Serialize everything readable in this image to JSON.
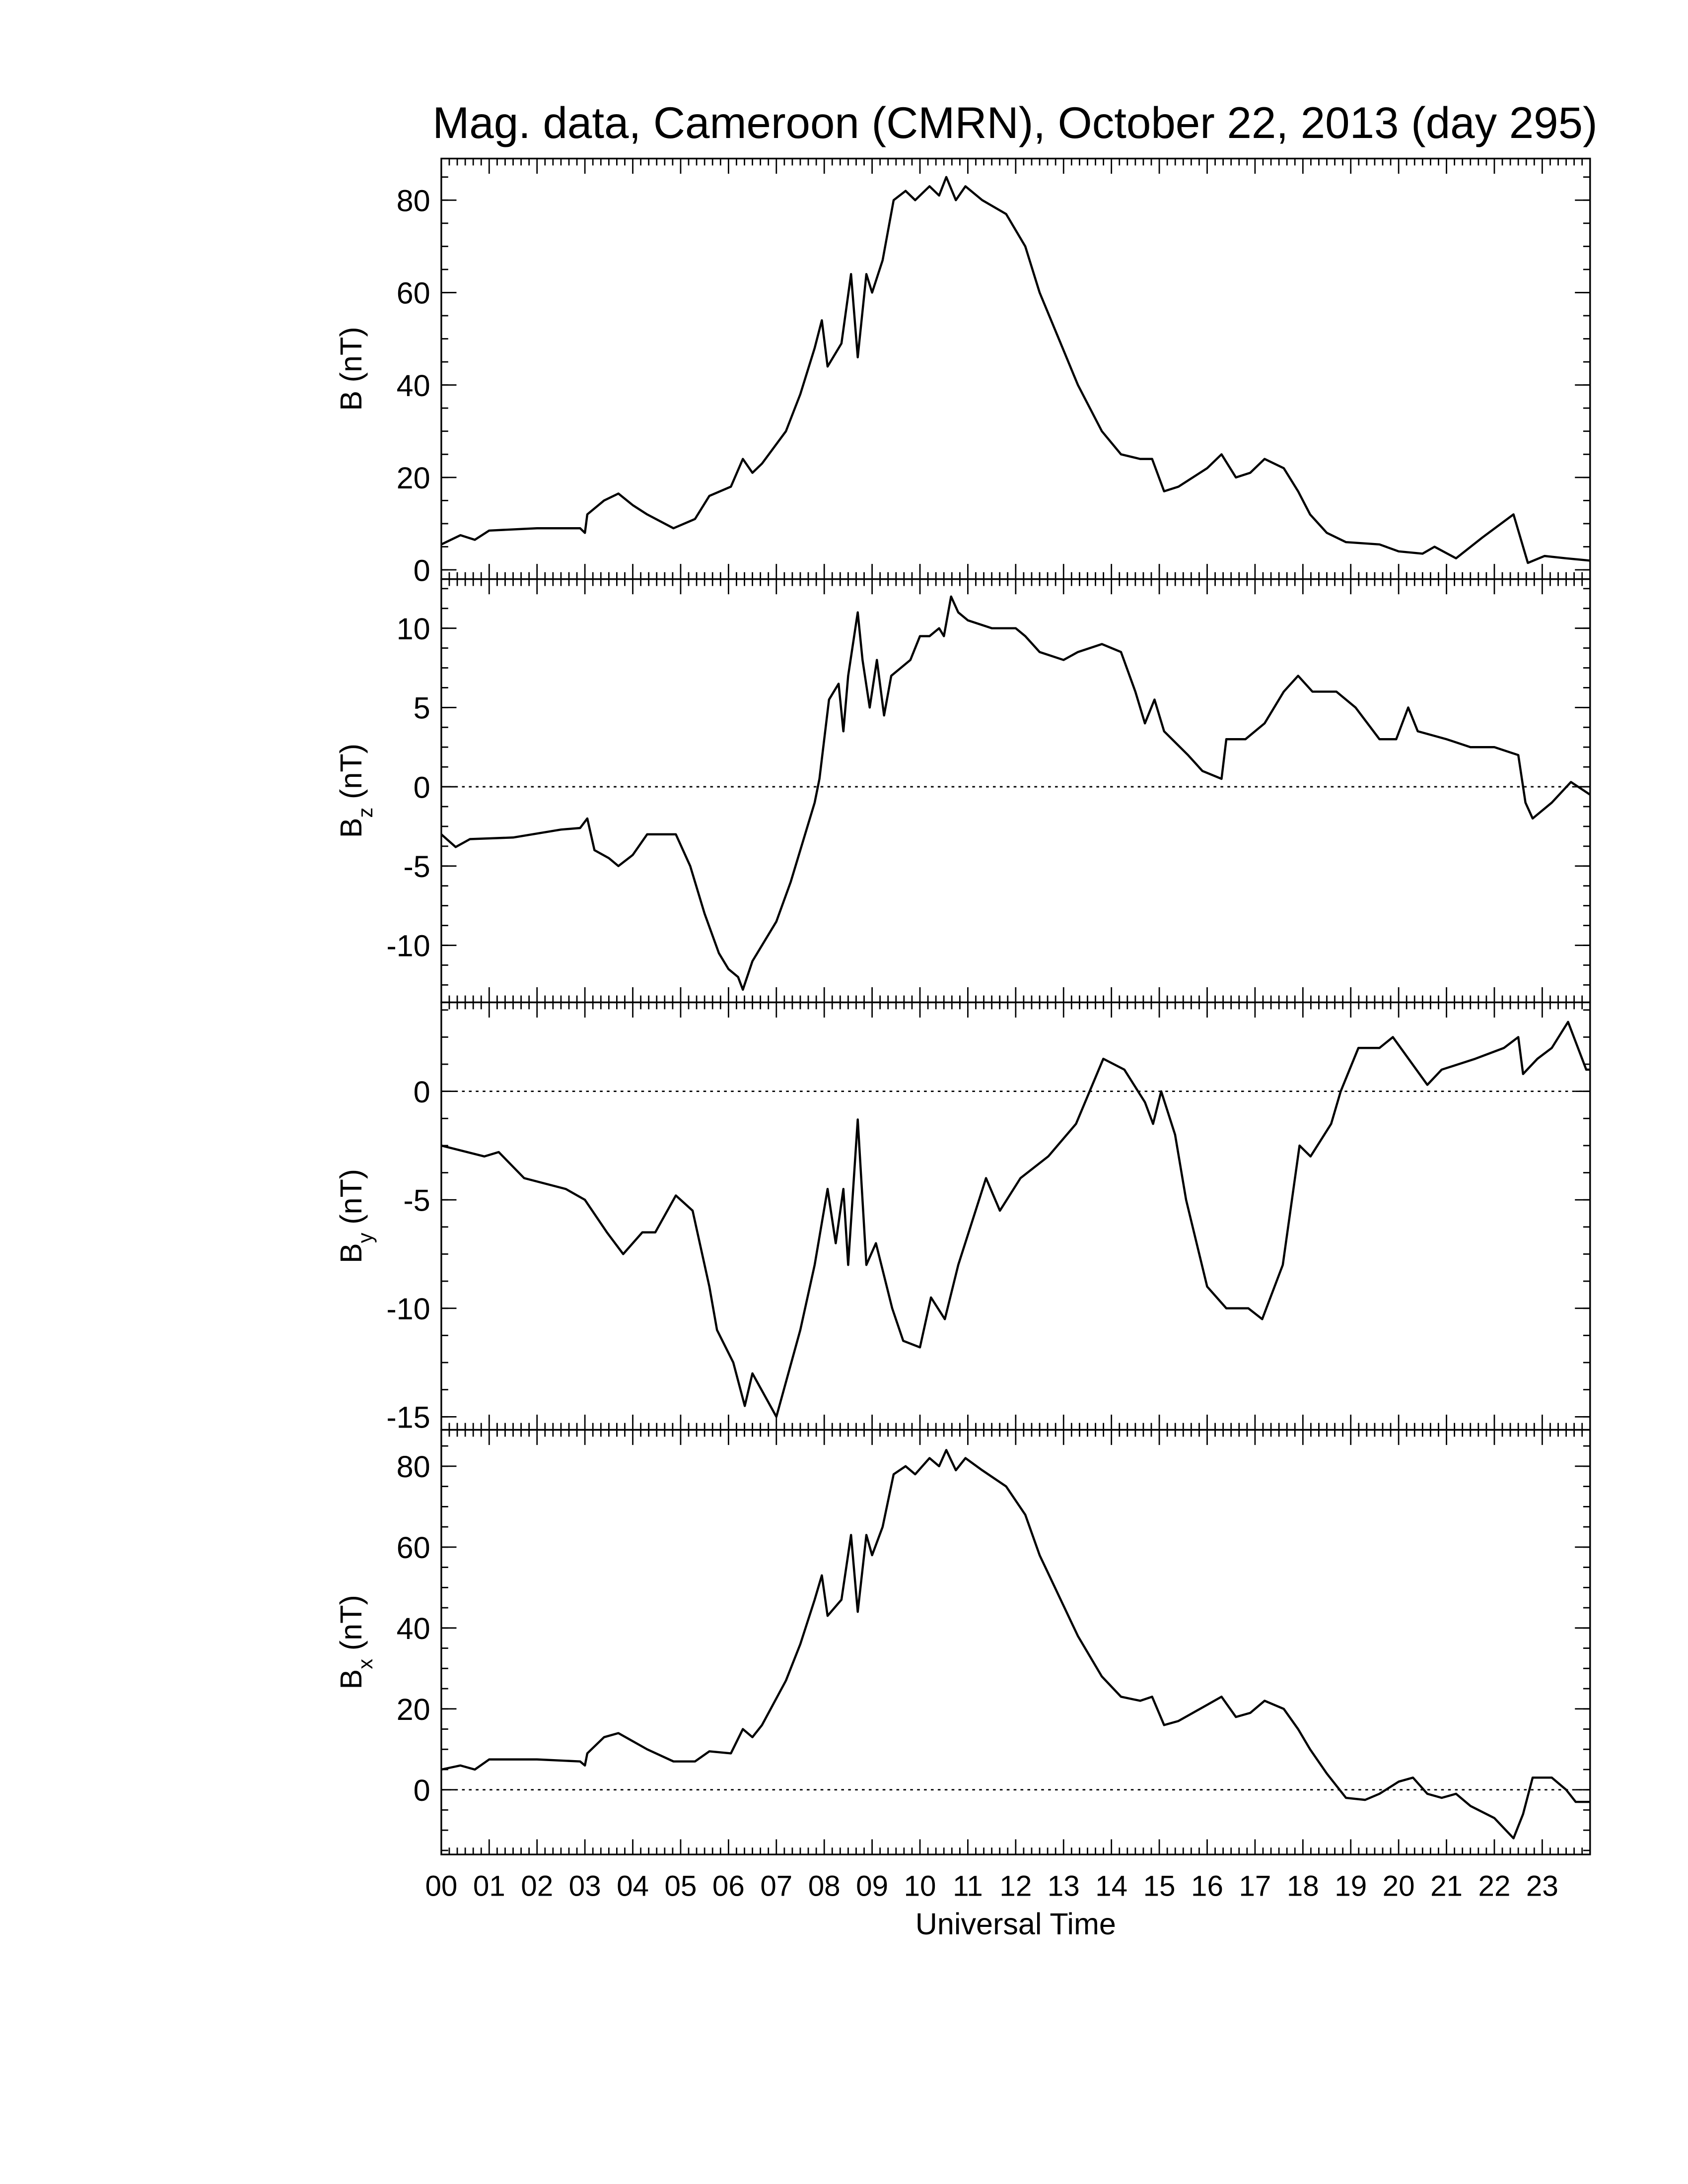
{
  "chart_data": [
    {
      "type": "line",
      "title": "Mag. data, Cameroon (CMRN), October 22, 2013 (day 295)",
      "ylabel": "B",
      "ylabel_unit": "(nT)",
      "color": "#000000",
      "zero_line": false,
      "xlim": [
        0,
        24
      ],
      "ylim": [
        -2,
        89
      ],
      "yticks": [
        0,
        20,
        40,
        60,
        80
      ],
      "x": [
        0,
        0.4,
        0.7,
        1.0,
        2.0,
        2.9,
        3.0,
        3.05,
        3.4,
        3.7,
        4.0,
        4.3,
        4.85,
        5.3,
        5.6,
        6.05,
        6.3,
        6.5,
        6.7,
        7.2,
        7.5,
        7.8,
        7.95,
        8.07,
        8.36,
        8.56,
        8.7,
        8.88,
        9.0,
        9.22,
        9.45,
        9.7,
        9.9,
        10.2,
        10.4,
        10.55,
        10.75,
        10.95,
        11.3,
        11.8,
        12.2,
        12.5,
        12.9,
        13.3,
        13.8,
        14.2,
        14.6,
        14.85,
        15.1,
        15.4,
        15.7,
        16.0,
        16.3,
        16.6,
        16.9,
        17.2,
        17.6,
        17.9,
        18.15,
        18.5,
        18.9,
        19.6,
        20.0,
        20.5,
        20.75,
        21.2,
        21.75,
        22.4,
        22.7,
        23.05,
        23.5,
        24
      ],
      "values": [
        5.5,
        7.5,
        6.5,
        8.5,
        9,
        9,
        8,
        12,
        15,
        16.5,
        14,
        12,
        9,
        11,
        16,
        18,
        24,
        21,
        23,
        30,
        38,
        48,
        54,
        44,
        49,
        64,
        46,
        64,
        60,
        67,
        80,
        82,
        80,
        83,
        81,
        85,
        80,
        83,
        80,
        77,
        70,
        60,
        50,
        40,
        30,
        25,
        24,
        24,
        17,
        18,
        20,
        22,
        25,
        20,
        21,
        24,
        22,
        17,
        12,
        8,
        6,
        5.5,
        4,
        3.5,
        5,
        2.5,
        7,
        12,
        1.5,
        3,
        2.5,
        2
      ]
    },
    {
      "type": "line",
      "ylabel": "B",
      "ylabel_sub": "z",
      "ylabel_unit": "(nT)",
      "color": "#000000",
      "zero_line": true,
      "xlim": [
        0,
        24
      ],
      "ylim": [
        -13.6,
        13.1
      ],
      "yticks": [
        -10,
        -5,
        0,
        5,
        10
      ],
      "x": [
        0,
        0.3,
        0.6,
        1.5,
        2.5,
        2.9,
        3.05,
        3.2,
        3.5,
        3.7,
        4.0,
        4.3,
        4.9,
        5.2,
        5.5,
        5.8,
        6.0,
        6.2,
        6.3,
        6.5,
        6.8,
        7.0,
        7.3,
        7.6,
        7.8,
        7.9,
        8.1,
        8.3,
        8.4,
        8.5,
        8.7,
        8.8,
        8.95,
        9.1,
        9.25,
        9.4,
        9.6,
        9.8,
        10.0,
        10.2,
        10.4,
        10.5,
        10.65,
        10.8,
        11.0,
        11.5,
        12.0,
        12.2,
        12.5,
        13.0,
        13.3,
        13.8,
        14.2,
        14.5,
        14.7,
        14.9,
        15.1,
        15.6,
        15.9,
        16.3,
        16.4,
        16.8,
        17.2,
        17.6,
        17.9,
        18.2,
        18.7,
        19.1,
        19.6,
        19.95,
        20.2,
        20.4,
        21.0,
        21.5,
        22.0,
        22.5,
        22.65,
        22.8,
        23.2,
        23.6,
        24.0
      ],
      "values": [
        -3,
        -3.8,
        -3.3,
        -3.2,
        -2.7,
        -2.6,
        -2,
        -4,
        -4.5,
        -5,
        -4.3,
        -3,
        -3,
        -5,
        -8,
        -10.5,
        -11.5,
        -12,
        -12.8,
        -11,
        -9.5,
        -8.5,
        -6,
        -3,
        -1,
        0.5,
        5.5,
        6.5,
        3.5,
        7,
        11,
        8,
        5,
        8,
        4.5,
        7,
        7.5,
        8,
        9.5,
        9.5,
        10,
        9.5,
        12,
        11,
        10.5,
        10,
        10,
        9.5,
        8.5,
        8,
        8.5,
        9,
        8.5,
        6,
        4,
        5.5,
        3.5,
        2,
        1,
        0.5,
        3,
        3,
        4,
        6,
        7,
        6,
        6,
        5,
        3,
        3,
        5,
        3.5,
        3,
        2.5,
        2.5,
        2,
        -1,
        -2,
        -1,
        0.3,
        -0.5
      ]
    },
    {
      "type": "line",
      "ylabel": "B",
      "ylabel_sub": "y",
      "ylabel_unit": "(nT)",
      "color": "#000000",
      "zero_line": true,
      "xlim": [
        0,
        24
      ],
      "ylim": [
        -15.6,
        4.1
      ],
      "yticks": [
        -15,
        -10,
        -5,
        0
      ],
      "x": [
        0,
        0.9,
        1.2,
        1.73,
        2.6,
        3.0,
        3.46,
        3.8,
        4.2,
        4.47,
        4.9,
        5.25,
        5.6,
        5.76,
        6.1,
        6.34,
        6.5,
        6.75,
        7.0,
        7.5,
        7.8,
        8.07,
        8.24,
        8.4,
        8.5,
        8.7,
        8.88,
        9.08,
        9.42,
        9.65,
        10.0,
        10.23,
        10.52,
        10.8,
        11.38,
        11.67,
        12.1,
        12.68,
        13.26,
        13.83,
        14.27,
        14.7,
        14.87,
        15.04,
        15.33,
        15.56,
        16.0,
        16.4,
        16.86,
        17.15,
        17.58,
        17.93,
        18.16,
        18.59,
        18.79,
        19.16,
        19.6,
        19.88,
        20.6,
        20.9,
        21.6,
        22.2,
        22.5,
        22.6,
        22.9,
        23.2,
        23.54,
        23.92,
        24
      ],
      "values": [
        -2.5,
        -3,
        -2.8,
        -4,
        -4.5,
        -5,
        -6.5,
        -7.5,
        -6.5,
        -6.5,
        -4.8,
        -5.5,
        -9,
        -11,
        -12.5,
        -14.5,
        -13,
        -14,
        -15,
        -11,
        -8,
        -4.5,
        -7,
        -4.5,
        -8,
        -1.3,
        -8,
        -7,
        -10,
        -11.5,
        -11.8,
        -9.5,
        -10.5,
        -8,
        -4,
        -5.5,
        -4,
        -3,
        -1.5,
        1.5,
        1,
        -0.5,
        -1.5,
        0,
        -2,
        -5,
        -9,
        -10,
        -10,
        -10.5,
        -8,
        -2.5,
        -3,
        -1.5,
        0,
        2,
        2,
        2.5,
        0.3,
        1,
        1.5,
        2,
        2.5,
        0.8,
        1.5,
        2,
        3.2,
        1,
        1
      ]
    },
    {
      "type": "line",
      "ylabel": "B",
      "ylabel_sub": "x",
      "ylabel_unit": "(nT)",
      "color": "#000000",
      "zero_line": true,
      "xlabel": "Universal Time",
      "xlim": [
        0,
        24
      ],
      "ylim": [
        -16,
        89
      ],
      "yticks": [
        0,
        20,
        40,
        60,
        80
      ],
      "xticks": [
        {
          "value": 0,
          "label": "00"
        },
        {
          "value": 1,
          "label": "01"
        },
        {
          "value": 2,
          "label": "02"
        },
        {
          "value": 3,
          "label": "03"
        },
        {
          "value": 4,
          "label": "04"
        },
        {
          "value": 5,
          "label": "05"
        },
        {
          "value": 6,
          "label": "06"
        },
        {
          "value": 7,
          "label": "07"
        },
        {
          "value": 8,
          "label": "08"
        },
        {
          "value": 9,
          "label": "09"
        },
        {
          "value": 10,
          "label": "10"
        },
        {
          "value": 11,
          "label": "11"
        },
        {
          "value": 12,
          "label": "12"
        },
        {
          "value": 13,
          "label": "13"
        },
        {
          "value": 14,
          "label": "14"
        },
        {
          "value": 15,
          "label": "15"
        },
        {
          "value": 16,
          "label": "16"
        },
        {
          "value": 17,
          "label": "17"
        },
        {
          "value": 18,
          "label": "18"
        },
        {
          "value": 19,
          "label": "19"
        },
        {
          "value": 20,
          "label": "20"
        },
        {
          "value": 21,
          "label": "21"
        },
        {
          "value": 22,
          "label": "22"
        },
        {
          "value": 23,
          "label": "23"
        }
      ],
      "x": [
        0,
        0.4,
        0.7,
        1.0,
        2.0,
        2.9,
        3.0,
        3.05,
        3.4,
        3.7,
        4.0,
        4.3,
        4.85,
        5.3,
        5.6,
        6.05,
        6.3,
        6.5,
        6.7,
        7.2,
        7.5,
        7.8,
        7.95,
        8.07,
        8.36,
        8.56,
        8.7,
        8.88,
        9.0,
        9.22,
        9.45,
        9.7,
        9.9,
        10.2,
        10.4,
        10.55,
        10.75,
        10.95,
        11.3,
        11.8,
        12.2,
        12.5,
        12.9,
        13.3,
        13.8,
        14.2,
        14.6,
        14.85,
        15.1,
        15.4,
        15.7,
        16.0,
        16.3,
        16.6,
        16.9,
        17.2,
        17.6,
        17.9,
        18.15,
        18.5,
        18.9,
        19.3,
        19.6,
        20.0,
        20.3,
        20.6,
        20.9,
        21.2,
        21.5,
        22.0,
        22.4,
        22.6,
        22.8,
        23.2,
        23.5,
        23.7,
        24
      ],
      "values": [
        5,
        6,
        5,
        7.5,
        7.5,
        7,
        6,
        9,
        13,
        14,
        12,
        10,
        7,
        7,
        9.5,
        9,
        15,
        13,
        16,
        27,
        36,
        47,
        53,
        43,
        47,
        63,
        44,
        63,
        58,
        65,
        78,
        80,
        78,
        82,
        80,
        84,
        79,
        82,
        79,
        75,
        68,
        58,
        48,
        38,
        28,
        23,
        22,
        23,
        16,
        17,
        19,
        21,
        23,
        18,
        19,
        22,
        20,
        15,
        10,
        4,
        -2,
        -2.5,
        -1,
        2,
        3,
        -1,
        -2,
        -1,
        -4,
        -7,
        -12,
        -6,
        3,
        3,
        0,
        -3,
        -3
      ]
    }
  ]
}
